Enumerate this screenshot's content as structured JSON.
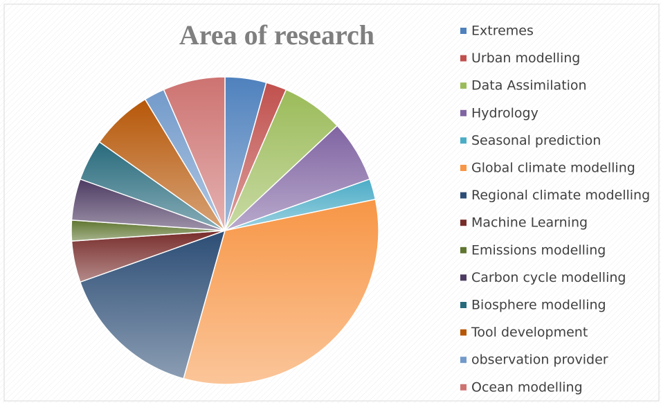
{
  "chart_data": {
    "type": "pie",
    "title": "Area of research",
    "categories": [
      "Extremes",
      "Urban modelling",
      "Data Assimilation",
      "Hydrology",
      "Seasonal prediction",
      "Global climate modelling",
      "Regional climate modelling",
      "Machine Learning",
      "Emissions modelling",
      "Carbon cycle modelling",
      "Biosphere modelling",
      "Tool development",
      "observation provider",
      "Ocean modelling"
    ],
    "values": [
      2,
      1,
      3,
      3,
      1,
      15,
      7,
      2,
      1,
      2,
      2,
      3,
      1,
      3
    ],
    "colors": [
      "#4f81bd",
      "#c0504d",
      "#9bbb59",
      "#8064a2",
      "#4bacc6",
      "#f79646",
      "#2c4d75",
      "#772c2a",
      "#5f7530",
      "#4d3b62",
      "#276a7c",
      "#b65708",
      "#729aca",
      "#cd7371"
    ],
    "legend": "right"
  }
}
